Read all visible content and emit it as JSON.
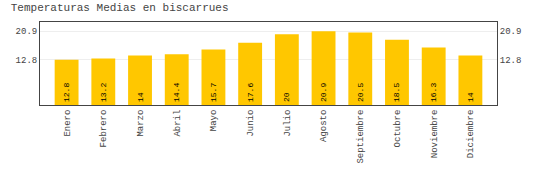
{
  "chart_data": {
    "type": "bar",
    "title": "Temperaturas Medias en biscarrues",
    "categories": [
      "Enero",
      "Febrero",
      "Marzo",
      "Abril",
      "Mayo",
      "Junio",
      "Julio",
      "Agosto",
      "Septiembre",
      "Octubre",
      "Noviembre",
      "Diciembre"
    ],
    "values": [
      12.8,
      13.2,
      14.0,
      14.4,
      15.7,
      17.6,
      20.0,
      20.9,
      20.5,
      18.5,
      16.3,
      14.0
    ],
    "color": "#FFC700",
    "ylim": [
      0,
      23.5
    ],
    "yticks": [
      12.8,
      20.9
    ],
    "y2lim": [
      0,
      23.5
    ],
    "y2ticks": [
      12.8,
      20.9
    ],
    "grid": true,
    "data_labels": true
  }
}
